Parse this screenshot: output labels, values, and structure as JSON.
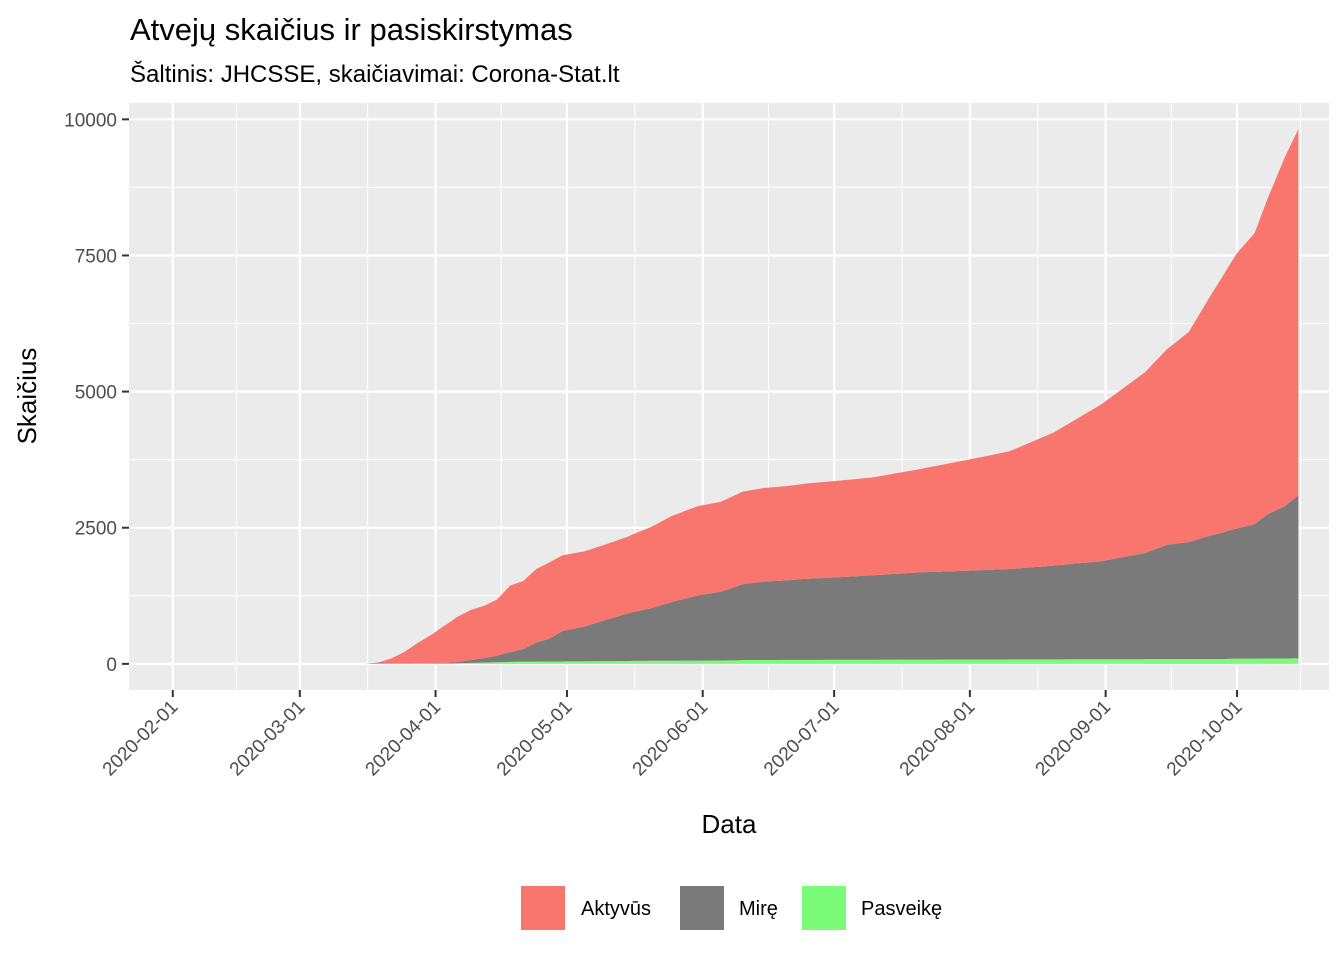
{
  "chart_data": {
    "type": "area",
    "stacked": true,
    "title": "Atvejų skaičius ir pasiskirstymas",
    "subtitle": "Šaltinis: JHCSSE, skaičiavimai: Corona-Stat.lt",
    "xlabel": "Data",
    "ylabel": "Skaičius",
    "xlim": [
      "2020-01-22",
      "2020-10-22"
    ],
    "ylim": [
      -480,
      10300
    ],
    "x_ticks": [
      "2020-02-01",
      "2020-03-01",
      "2020-04-01",
      "2020-05-01",
      "2020-06-01",
      "2020-07-01",
      "2020-08-01",
      "2020-09-01",
      "2020-10-01"
    ],
    "y_ticks": [
      0,
      2500,
      5000,
      7500,
      10000
    ],
    "y_tick_labels": [
      "0",
      "2500",
      "5000",
      "7500",
      "10000"
    ],
    "grid": true,
    "legend_position": "bottom",
    "stack_order": [
      "Pasveikę",
      "Mirę",
      "Aktyvūs"
    ],
    "series": [
      {
        "name": "Aktyvūs",
        "color": "#F8766D",
        "points": [
          [
            "2020-03-16",
            0
          ],
          [
            "2020-03-19",
            25
          ],
          [
            "2020-03-22",
            100
          ],
          [
            "2020-03-25",
            220
          ],
          [
            "2020-03-28",
            380
          ],
          [
            "2020-03-31",
            520
          ],
          [
            "2020-04-03",
            680
          ],
          [
            "2020-04-06",
            830
          ],
          [
            "2020-04-09",
            920
          ],
          [
            "2020-04-12",
            960
          ],
          [
            "2020-04-15",
            1030
          ],
          [
            "2020-04-18",
            1220
          ],
          [
            "2020-04-21",
            1250
          ],
          [
            "2020-04-24",
            1350
          ],
          [
            "2020-04-27",
            1400
          ],
          [
            "2020-04-30",
            1390
          ],
          [
            "2020-05-05",
            1380
          ],
          [
            "2020-05-10",
            1390
          ],
          [
            "2020-05-15",
            1410
          ],
          [
            "2020-05-20",
            1490
          ],
          [
            "2020-05-25",
            1580
          ],
          [
            "2020-05-31",
            1640
          ],
          [
            "2020-06-05",
            1650
          ],
          [
            "2020-06-10",
            1700
          ],
          [
            "2020-06-15",
            1720
          ],
          [
            "2020-06-20",
            1730
          ],
          [
            "2020-06-25",
            1750
          ],
          [
            "2020-07-01",
            1770
          ],
          [
            "2020-07-10",
            1800
          ],
          [
            "2020-07-20",
            1890
          ],
          [
            "2020-07-31",
            2030
          ],
          [
            "2020-08-10",
            2160
          ],
          [
            "2020-08-20",
            2440
          ],
          [
            "2020-08-31",
            2880
          ],
          [
            "2020-09-10",
            3320
          ],
          [
            "2020-09-15",
            3590
          ],
          [
            "2020-09-20",
            3860
          ],
          [
            "2020-09-25",
            4410
          ],
          [
            "2020-10-01",
            5060
          ],
          [
            "2020-10-05",
            5340
          ],
          [
            "2020-10-08",
            5800
          ],
          [
            "2020-10-12",
            6420
          ],
          [
            "2020-10-15",
            6720
          ]
        ]
      },
      {
        "name": "Mirę",
        "color": "#7A7A7A",
        "points": [
          [
            "2020-03-16",
            0
          ],
          [
            "2020-03-25",
            0
          ],
          [
            "2020-03-31",
            5
          ],
          [
            "2020-04-05",
            15
          ],
          [
            "2020-04-08",
            40
          ],
          [
            "2020-04-12",
            80
          ],
          [
            "2020-04-15",
            120
          ],
          [
            "2020-04-18",
            180
          ],
          [
            "2020-04-21",
            230
          ],
          [
            "2020-04-24",
            350
          ],
          [
            "2020-04-27",
            420
          ],
          [
            "2020-04-30",
            560
          ],
          [
            "2020-05-05",
            640
          ],
          [
            "2020-05-10",
            760
          ],
          [
            "2020-05-15",
            880
          ],
          [
            "2020-05-20",
            960
          ],
          [
            "2020-05-25",
            1080
          ],
          [
            "2020-05-31",
            1200
          ],
          [
            "2020-06-05",
            1260
          ],
          [
            "2020-06-10",
            1390
          ],
          [
            "2020-06-15",
            1440
          ],
          [
            "2020-06-20",
            1460
          ],
          [
            "2020-06-25",
            1490
          ],
          [
            "2020-07-01",
            1510
          ],
          [
            "2020-07-10",
            1550
          ],
          [
            "2020-07-20",
            1600
          ],
          [
            "2020-07-31",
            1630
          ],
          [
            "2020-08-10",
            1660
          ],
          [
            "2020-08-20",
            1720
          ],
          [
            "2020-08-31",
            1800
          ],
          [
            "2020-09-10",
            1950
          ],
          [
            "2020-09-15",
            2100
          ],
          [
            "2020-09-20",
            2150
          ],
          [
            "2020-09-25",
            2270
          ],
          [
            "2020-10-01",
            2390
          ],
          [
            "2020-10-05",
            2470
          ],
          [
            "2020-10-08",
            2650
          ],
          [
            "2020-10-12",
            2800
          ],
          [
            "2020-10-15",
            3000
          ]
        ]
      },
      {
        "name": "Pasveikę",
        "color": "#7BFC78",
        "points": [
          [
            "2020-03-16",
            0
          ],
          [
            "2020-03-25",
            5
          ],
          [
            "2020-04-05",
            10
          ],
          [
            "2020-04-15",
            30
          ],
          [
            "2020-04-20",
            40
          ],
          [
            "2020-05-01",
            45
          ],
          [
            "2020-05-15",
            50
          ],
          [
            "2020-05-16",
            55
          ],
          [
            "2020-06-01",
            60
          ],
          [
            "2020-06-09",
            65
          ],
          [
            "2020-06-10",
            70
          ],
          [
            "2020-07-01",
            75
          ],
          [
            "2020-08-01",
            80
          ],
          [
            "2020-09-01",
            85
          ],
          [
            "2020-09-28",
            88
          ],
          [
            "2020-09-29",
            95
          ],
          [
            "2020-10-15",
            100
          ]
        ]
      }
    ]
  }
}
